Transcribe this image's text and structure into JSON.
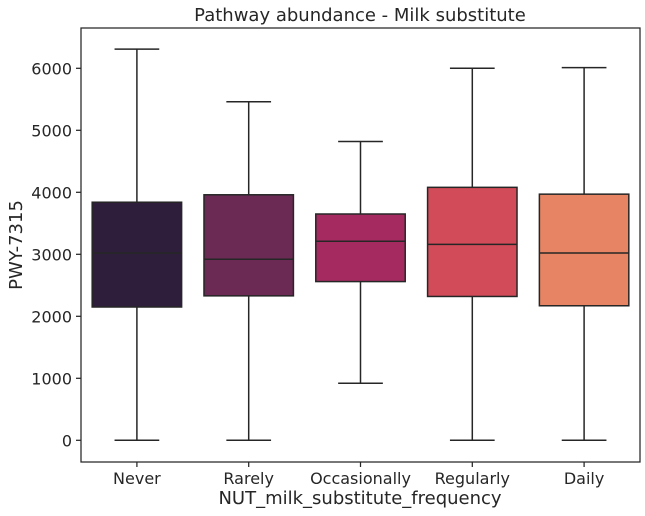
{
  "chart_data": {
    "type": "box",
    "title": "Pathway abundance - Milk substitute",
    "xlabel": "NUT_milk_substitute_frequency",
    "ylabel": "PWY-7315",
    "ylim": [
      -350,
      6650
    ],
    "yticks": [
      0,
      1000,
      2000,
      3000,
      4000,
      5000,
      6000
    ],
    "grid": false,
    "categories": [
      "Never",
      "Rarely",
      "Occasionally",
      "Regularly",
      "Daily"
    ],
    "colors": [
      "#2e1e3b",
      "#6b2a54",
      "#a52a60",
      "#d24b58",
      "#e68463"
    ],
    "boxes": [
      {
        "category": "Never",
        "whisker_low": 0,
        "q1": 2150,
        "median": 3020,
        "q3": 3840,
        "whisker_high": 6310
      },
      {
        "category": "Rarely",
        "whisker_low": 0,
        "q1": 2330,
        "median": 2920,
        "q3": 3960,
        "whisker_high": 5460
      },
      {
        "category": "Occasionally",
        "whisker_low": 920,
        "q1": 2560,
        "median": 3210,
        "q3": 3650,
        "whisker_high": 4820
      },
      {
        "category": "Regularly",
        "whisker_low": 0,
        "q1": 2320,
        "median": 3160,
        "q3": 4080,
        "whisker_high": 6000
      },
      {
        "category": "Daily",
        "whisker_low": 0,
        "q1": 2170,
        "median": 3020,
        "q3": 3970,
        "whisker_high": 6010
      }
    ]
  }
}
